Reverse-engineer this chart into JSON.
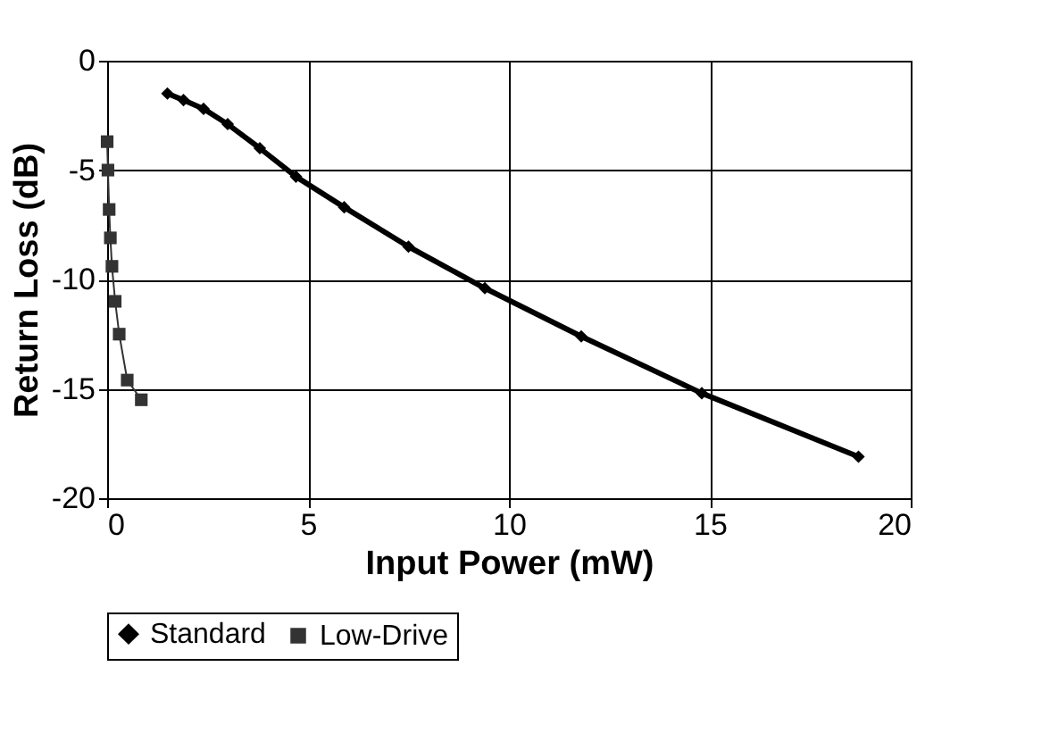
{
  "chart_data": {
    "type": "line",
    "xlabel": "Input Power (mW)",
    "ylabel": "Return Loss (dB)",
    "xlim": [
      0,
      20
    ],
    "xticks": [
      0,
      5,
      10,
      15,
      20
    ],
    "ylim": [
      -20,
      0
    ],
    "yticks": [
      -20,
      -15,
      -10,
      -5,
      0
    ],
    "grid": true,
    "legend": "bottom",
    "series": [
      {
        "name": "Standard",
        "color": "#000000",
        "marker": "diamond",
        "x": [
          1.5,
          1.9,
          2.4,
          3.0,
          3.8,
          4.7,
          5.9,
          7.5,
          9.4,
          11.8,
          14.8,
          18.7
        ],
        "values": [
          -1.5,
          -1.8,
          -2.2,
          -2.9,
          -4.0,
          -5.3,
          -6.7,
          -8.5,
          -10.4,
          -12.6,
          -15.2,
          -18.1
        ]
      },
      {
        "name": "Low-Drive",
        "color": "#333333",
        "marker": "square",
        "x": [
          0.0,
          0.02,
          0.05,
          0.08,
          0.12,
          0.2,
          0.3,
          0.5,
          0.85
        ],
        "values": [
          -3.7,
          -5.0,
          -6.8,
          -8.1,
          -9.4,
          -11.0,
          -12.5,
          -14.6,
          -15.5
        ]
      }
    ]
  }
}
